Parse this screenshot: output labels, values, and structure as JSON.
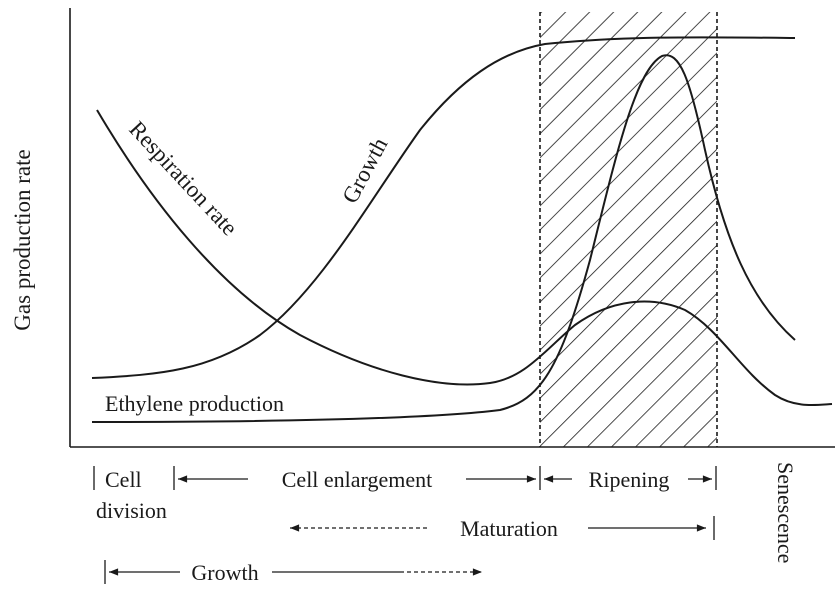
{
  "axis_label": "Gas production rate",
  "curves": {
    "respiration": "Respiration rate",
    "growth": "Growth",
    "ethylene": "Ethylene production"
  },
  "stages": {
    "cell": "Cell",
    "division": "division",
    "cell_enlargement": "Cell enlargement",
    "ripening": "Ripening",
    "maturation": "Maturation",
    "growth": "Growth",
    "senescence": "Senescence"
  }
}
